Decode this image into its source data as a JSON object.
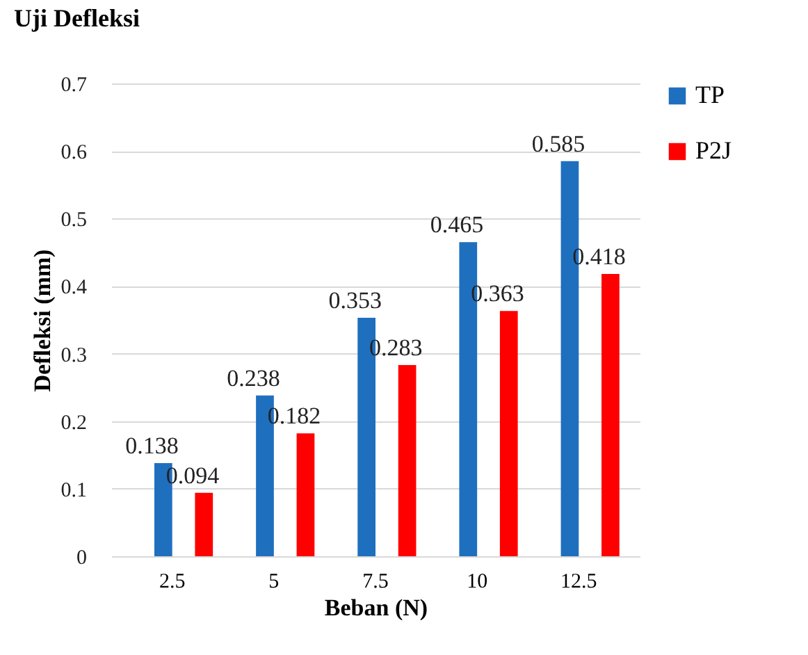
{
  "chart_data": {
    "type": "bar",
    "title": "Uji Defleksi",
    "xlabel": "Beban (N)",
    "ylabel": "Defleksi (mm)",
    "categories": [
      "2.5",
      "5",
      "7.5",
      "10",
      "12.5"
    ],
    "series": [
      {
        "name": "TP",
        "color": "#1f6fbf",
        "values": [
          0.138,
          0.238,
          0.353,
          0.465,
          0.585
        ]
      },
      {
        "name": "P2J",
        "color": "#ff0000",
        "values": [
          0.094,
          0.182,
          0.283,
          0.363,
          0.418
        ]
      }
    ],
    "ylim": [
      0,
      0.7
    ],
    "yticks": [
      0,
      0.1,
      0.2,
      0.3,
      0.4,
      0.5,
      0.6,
      0.7
    ],
    "grid": "y",
    "legend": "right",
    "data_labels": true
  }
}
